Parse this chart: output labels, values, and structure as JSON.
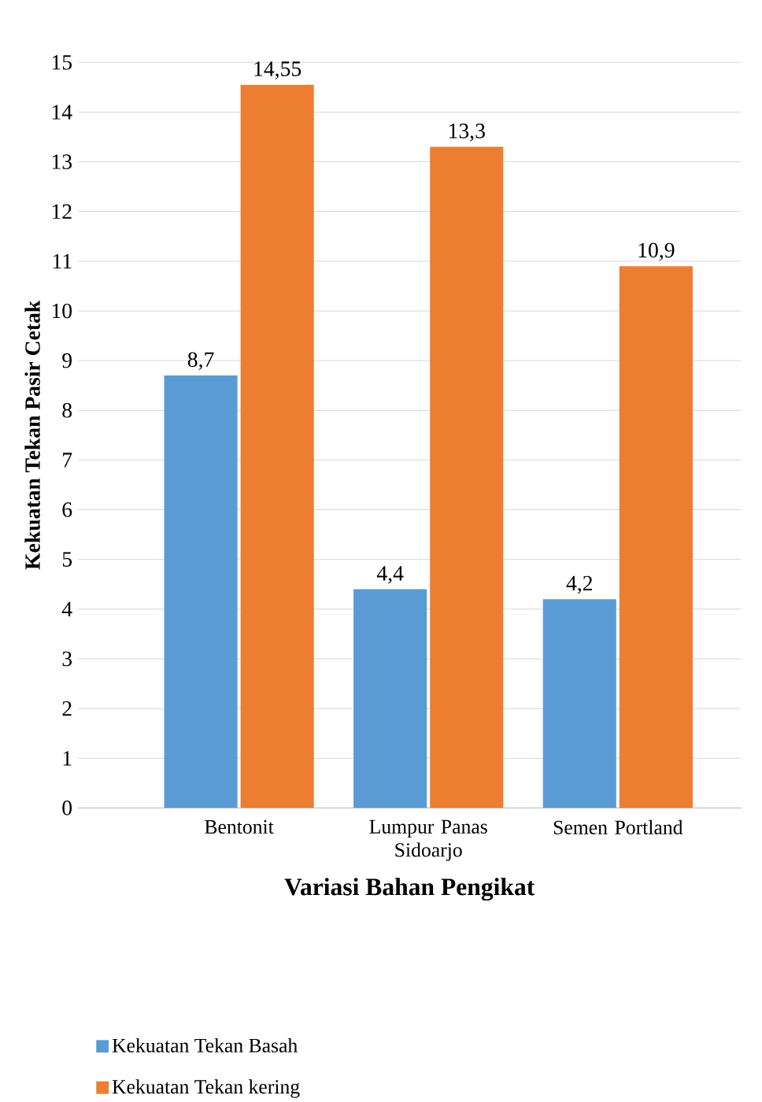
{
  "chart_data": {
    "type": "bar",
    "xlabel": "Variasi Bahan Pengikat",
    "ylabel": "Kekuatan Tekan Pasir Cetak",
    "categories": [
      "Bentonit",
      "Lumpur Panas Sidoarjo",
      "Semen Portland"
    ],
    "series": [
      {
        "name": "Kekuatan Tekan Basah",
        "color": "#5b9bd5",
        "values": [
          8.7,
          4.4,
          4.2
        ],
        "value_labels": [
          "8,7",
          "4,4",
          "4,2"
        ]
      },
      {
        "name": "Kekuatan Tekan kering",
        "color": "#ed7d31",
        "values": [
          14.55,
          13.3,
          10.9
        ],
        "value_labels": [
          "14,55",
          "13,3",
          "10,9"
        ]
      }
    ],
    "ylim": [
      0,
      15
    ],
    "yticks": [
      0,
      1,
      2,
      3,
      4,
      5,
      6,
      7,
      8,
      9,
      10,
      11,
      12,
      13,
      14,
      15
    ],
    "grid": "y",
    "legend": "bottom"
  }
}
